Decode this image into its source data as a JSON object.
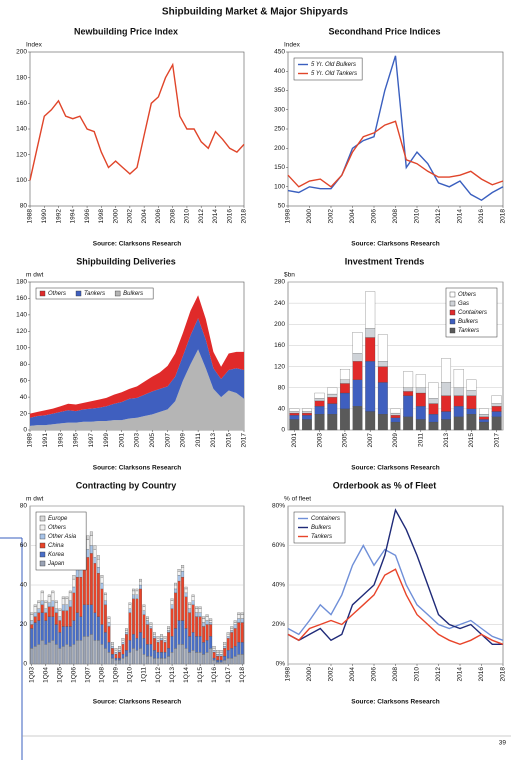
{
  "page_title": "Shipbuilding Market & Major Shipyards",
  "page_number": "39",
  "chart_data": [
    {
      "type": "line",
      "title": "Newbuilding Price Index",
      "ylabel": "Index",
      "source": "Source: Clarksons Research",
      "x": [
        1988,
        1989,
        1990,
        1991,
        1992,
        1993,
        1994,
        1995,
        1996,
        1997,
        1998,
        1999,
        2000,
        2001,
        2002,
        2003,
        2004,
        2005,
        2006,
        2007,
        2008,
        2009,
        2010,
        2011,
        2012,
        2013,
        2014,
        2015,
        2016,
        2017,
        2018
      ],
      "values": [
        100,
        125,
        150,
        155,
        162,
        150,
        148,
        150,
        140,
        138,
        122,
        110,
        115,
        110,
        105,
        110,
        135,
        160,
        165,
        180,
        190,
        150,
        140,
        140,
        130,
        125,
        138,
        132,
        125,
        122,
        128
      ],
      "color": "#e0452a",
      "xlim": [
        1988,
        2018
      ],
      "xticks": [
        1988,
        1990,
        1992,
        1994,
        1996,
        1998,
        2000,
        2002,
        2004,
        2006,
        2008,
        2010,
        2012,
        2014,
        2016,
        2018
      ],
      "ylim": [
        80,
        200
      ],
      "yticks": [
        80,
        100,
        120,
        140,
        160,
        180,
        200
      ],
      "grid": false
    },
    {
      "type": "line",
      "title": "Secondhand Price Indices",
      "ylabel": "Index",
      "source": "Source: Clarksons Research",
      "x": [
        1998,
        1999,
        2000,
        2001,
        2002,
        2003,
        2004,
        2005,
        2006,
        2007,
        2008,
        2009,
        2010,
        2011,
        2012,
        2013,
        2014,
        2015,
        2016,
        2017,
        2018
      ],
      "series": [
        {
          "name": "5 Yr. Old Bulkers",
          "color": "#3a5fbf",
          "values": [
            90,
            85,
            100,
            95,
            95,
            130,
            200,
            220,
            230,
            350,
            440,
            150,
            190,
            160,
            110,
            100,
            115,
            80,
            65,
            85,
            100
          ]
        },
        {
          "name": "5 Yr. Old Tankers",
          "color": "#e0452a",
          "values": [
            130,
            100,
            115,
            120,
            100,
            130,
            190,
            230,
            240,
            260,
            270,
            170,
            160,
            140,
            125,
            125,
            130,
            140,
            120,
            105,
            115
          ]
        }
      ],
      "xlim": [
        1998,
        2018
      ],
      "xticks": [
        1998,
        2000,
        2002,
        2004,
        2006,
        2008,
        2010,
        2012,
        2014,
        2016,
        2018
      ],
      "ylim": [
        50,
        450
      ],
      "yticks": [
        50,
        100,
        150,
        200,
        250,
        300,
        350,
        400,
        450
      ],
      "grid": false,
      "legend": {
        "position": "upper-left",
        "orientation": "vertical"
      }
    },
    {
      "type": "area",
      "title": "Shipbuilding Deliveries",
      "ylabel": "m dwt",
      "source": "Source: Clarksons Research",
      "x": [
        1989,
        1990,
        1991,
        1992,
        1993,
        1994,
        1995,
        1996,
        1997,
        1998,
        1999,
        2000,
        2001,
        2002,
        2003,
        2004,
        2005,
        2006,
        2007,
        2008,
        2009,
        2010,
        2011,
        2012,
        2013,
        2014,
        2015,
        2016,
        2017
      ],
      "series": [
        {
          "name": "Others",
          "color": "#e02a2a",
          "values": [
            5,
            5,
            6,
            6,
            7,
            8,
            8,
            8,
            9,
            10,
            10,
            11,
            12,
            12,
            14,
            16,
            18,
            20,
            25,
            28,
            28,
            30,
            28,
            25,
            20,
            15,
            20,
            20,
            22
          ]
        },
        {
          "name": "Tankers",
          "color": "#3f5fbf",
          "values": [
            10,
            11,
            12,
            13,
            14,
            15,
            14,
            15,
            16,
            16,
            18,
            20,
            22,
            24,
            24,
            26,
            28,
            28,
            28,
            30,
            30,
            35,
            38,
            35,
            25,
            22,
            25,
            30,
            35
          ]
        },
        {
          "name": "Bulkers",
          "color": "#b5b5b5",
          "values": [
            5,
            6,
            6,
            7,
            8,
            9,
            9,
            10,
            10,
            11,
            11,
            12,
            12,
            14,
            15,
            17,
            19,
            22,
            25,
            35,
            60,
            80,
            98,
            75,
            50,
            40,
            48,
            45,
            38
          ]
        }
      ],
      "xlim": [
        1989,
        2017
      ],
      "xticks": [
        1989,
        1991,
        1993,
        1995,
        1997,
        1999,
        2001,
        2003,
        2005,
        2007,
        2009,
        2011,
        2013,
        2015,
        2017
      ],
      "ylim": [
        0,
        180
      ],
      "yticks": [
        0,
        20,
        40,
        60,
        80,
        100,
        120,
        140,
        160,
        180
      ],
      "grid": false,
      "legend": {
        "position": "upper-left",
        "orientation": "horizontal"
      }
    },
    {
      "type": "bar",
      "title": "Investment Trends",
      "ylabel": "$bn",
      "source": "Source: Clarksons Research",
      "categories": [
        "2001",
        null,
        "2003",
        null,
        "2005",
        null,
        "2007",
        null,
        "2009",
        null,
        "2011",
        null,
        "2013",
        null,
        "2015",
        null,
        "2017"
      ],
      "series": [
        {
          "name": "Others",
          "color": "#ffffff",
          "values": [
            5,
            5,
            10,
            12,
            20,
            40,
            70,
            50,
            8,
            30,
            25,
            30,
            45,
            35,
            20,
            10,
            15
          ]
        },
        {
          "name": "Gas",
          "color": "#cfd3d8",
          "values": [
            3,
            3,
            5,
            6,
            7,
            15,
            17,
            10,
            4,
            7,
            10,
            10,
            25,
            15,
            10,
            5,
            5
          ]
        },
        {
          "name": "Containers",
          "color": "#e02a2a",
          "values": [
            4,
            4,
            10,
            12,
            18,
            35,
            45,
            30,
            5,
            8,
            25,
            20,
            30,
            20,
            25,
            5,
            10
          ]
        },
        {
          "name": "Bulkers",
          "color": "#3f5fbf",
          "values": [
            8,
            8,
            15,
            20,
            30,
            50,
            95,
            60,
            8,
            40,
            25,
            15,
            15,
            20,
            10,
            5,
            10
          ]
        },
        {
          "name": "Tankers",
          "color": "#5a5a5a",
          "values": [
            20,
            20,
            30,
            30,
            40,
            45,
            35,
            30,
            15,
            25,
            20,
            15,
            20,
            25,
            30,
            15,
            25
          ]
        }
      ],
      "ylim": [
        0,
        280
      ],
      "yticks": [
        0,
        40,
        80,
        120,
        160,
        200,
        240,
        280
      ],
      "grid": true,
      "legend": {
        "position": "upper-right",
        "orientation": "vertical"
      }
    },
    {
      "type": "bar",
      "title": "Contracting by Country",
      "ylabel": "m dwt",
      "source": "Source: Clarksons Research",
      "categories": [
        "1Q03",
        null,
        null,
        null,
        "1Q04",
        null,
        null,
        null,
        "1Q05",
        null,
        null,
        null,
        "1Q06",
        null,
        null,
        null,
        "1Q07",
        null,
        null,
        null,
        "1Q08",
        null,
        null,
        null,
        "1Q09",
        null,
        null,
        null,
        "1Q10",
        null,
        null,
        null,
        "1Q11",
        null,
        null,
        null,
        "1Q12",
        null,
        null,
        null,
        "1Q13",
        null,
        null,
        null,
        "1Q14",
        null,
        null,
        null,
        "1Q15",
        null,
        null,
        null,
        "1Q16",
        null,
        null,
        null,
        "1Q17",
        null,
        null,
        null,
        "1Q18"
      ],
      "series": [
        {
          "name": "Europe",
          "color": "#d8d8d8",
          "values": [
            1,
            1,
            1,
            1,
            1,
            1,
            1,
            1,
            1,
            1,
            1,
            1,
            2,
            2,
            2,
            2,
            2,
            2,
            2,
            2,
            1,
            1,
            1,
            1,
            1,
            1,
            1,
            1,
            1,
            1,
            1,
            1,
            1,
            1,
            1,
            1,
            1,
            1,
            1,
            1,
            1,
            1,
            1,
            1,
            1,
            1,
            1,
            1,
            1,
            1,
            1,
            1,
            1,
            1,
            1,
            1,
            1,
            1,
            1,
            1,
            1
          ]
        },
        {
          "name": "Others",
          "color": "#f2f2f2",
          "values": [
            3,
            3,
            3,
            4,
            3,
            3,
            4,
            3,
            3,
            3,
            3,
            4,
            4,
            4,
            5,
            5,
            5,
            5,
            4,
            4,
            3,
            3,
            2,
            1,
            1,
            1,
            1,
            1,
            2,
            2,
            2,
            2,
            2,
            1,
            1,
            1,
            1,
            1,
            1,
            1,
            2,
            2,
            2,
            2,
            2,
            2,
            2,
            2,
            2,
            2,
            2,
            1,
            1,
            1,
            1,
            1,
            1,
            1,
            1,
            2,
            2
          ]
        },
        {
          "name": "Other Asia",
          "color": "#a8c4e8",
          "values": [
            2,
            2,
            2,
            2,
            2,
            2,
            3,
            2,
            2,
            3,
            3,
            3,
            3,
            4,
            4,
            4,
            4,
            4,
            3,
            3,
            3,
            2,
            2,
            1,
            1,
            1,
            1,
            1,
            2,
            2,
            2,
            2,
            2,
            2,
            1,
            1,
            1,
            1,
            1,
            1,
            2,
            2,
            3,
            3,
            2,
            2,
            2,
            2,
            2,
            2,
            2,
            1,
            1,
            1,
            1,
            1,
            1,
            1,
            2,
            2,
            2
          ]
        },
        {
          "name": "China",
          "color": "#e8442a",
          "values": [
            2,
            3,
            4,
            4,
            4,
            5,
            5,
            6,
            6,
            8,
            8,
            10,
            14,
            18,
            20,
            24,
            24,
            26,
            25,
            22,
            18,
            14,
            8,
            3,
            2,
            3,
            5,
            8,
            14,
            18,
            20,
            22,
            12,
            10,
            8,
            6,
            5,
            6,
            5,
            8,
            14,
            18,
            20,
            22,
            16,
            12,
            14,
            10,
            10,
            8,
            8,
            6,
            3,
            2,
            2,
            4,
            6,
            8,
            9,
            10,
            10
          ]
        },
        {
          "name": "Korea",
          "color": "#4a6fc8",
          "values": [
            10,
            12,
            12,
            14,
            12,
            13,
            12,
            10,
            8,
            10,
            9,
            10,
            12,
            14,
            12,
            16,
            16,
            15,
            14,
            12,
            10,
            8,
            5,
            2,
            1,
            1,
            2,
            3,
            6,
            7,
            6,
            8,
            8,
            6,
            6,
            4,
            3,
            3,
            3,
            4,
            8,
            10,
            12,
            12,
            10,
            8,
            9,
            8,
            8,
            6,
            6,
            6,
            1,
            1,
            1,
            2,
            4,
            5,
            5,
            6,
            6
          ]
        },
        {
          "name": "Japan",
          "color": "#9aa3b5",
          "values": [
            8,
            9,
            10,
            12,
            10,
            11,
            12,
            10,
            8,
            9,
            10,
            9,
            10,
            12,
            12,
            14,
            14,
            15,
            12,
            12,
            10,
            8,
            6,
            3,
            2,
            2,
            3,
            4,
            6,
            8,
            7,
            8,
            5,
            4,
            4,
            3,
            3,
            3,
            3,
            4,
            6,
            8,
            10,
            10,
            8,
            6,
            7,
            6,
            6,
            5,
            6,
            8,
            2,
            1,
            1,
            2,
            3,
            3,
            4,
            5,
            5
          ]
        }
      ],
      "ylim": [
        0,
        80
      ],
      "yticks": [
        0,
        20,
        40,
        60,
        80
      ],
      "grid": true,
      "legend": {
        "position": "upper-left",
        "orientation": "vertical"
      }
    },
    {
      "type": "line",
      "title": "Orderbook as % of Fleet",
      "ylabel": "% of fleet",
      "source": "Source: Clarksons Research",
      "x": [
        1998,
        1999,
        2000,
        2001,
        2002,
        2003,
        2004,
        2005,
        2006,
        2007,
        2008,
        2009,
        2010,
        2011,
        2012,
        2013,
        2014,
        2015,
        2016,
        2017,
        2018
      ],
      "series": [
        {
          "name": "Containers",
          "color": "#6f8fd8",
          "values": [
            18,
            15,
            22,
            30,
            25,
            35,
            50,
            60,
            50,
            58,
            55,
            40,
            30,
            25,
            20,
            18,
            20,
            22,
            18,
            14,
            12
          ]
        },
        {
          "name": "Bulkers",
          "color": "#1f2a78",
          "values": [
            15,
            12,
            15,
            18,
            12,
            15,
            30,
            35,
            40,
            55,
            78,
            68,
            55,
            40,
            25,
            20,
            18,
            20,
            15,
            10,
            10
          ]
        },
        {
          "name": "Tankers",
          "color": "#e8442a",
          "values": [
            15,
            12,
            18,
            20,
            22,
            20,
            25,
            30,
            35,
            45,
            48,
            35,
            25,
            20,
            15,
            12,
            10,
            12,
            15,
            12,
            10
          ]
        }
      ],
      "xlim": [
        1998,
        2018
      ],
      "xticks": [
        1998,
        2000,
        2002,
        2004,
        2006,
        2008,
        2010,
        2012,
        2014,
        2016,
        2018
      ],
      "ylim": [
        0,
        80
      ],
      "yticks": [
        {
          "value": 0,
          "label": "0%"
        },
        {
          "value": 20,
          "label": "20%"
        },
        {
          "value": 40,
          "label": "40%"
        },
        {
          "value": 60,
          "label": "60%"
        },
        {
          "value": 80,
          "label": "80%"
        }
      ],
      "grid": true,
      "legend": {
        "position": "upper-left",
        "orientation": "vertical"
      }
    }
  ]
}
